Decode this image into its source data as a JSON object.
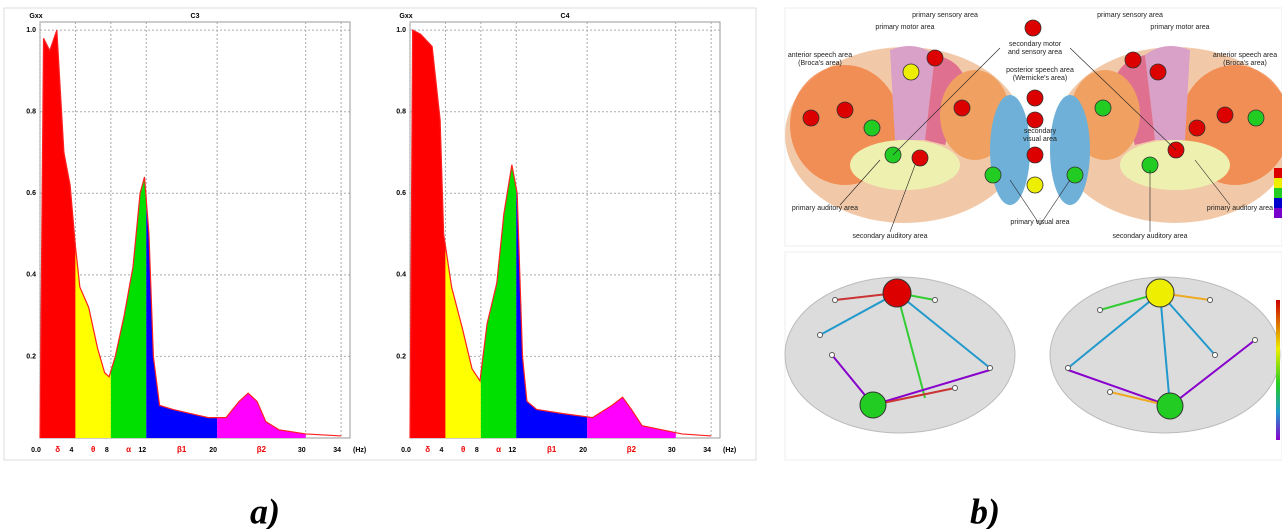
{
  "chart_data": [
    {
      "type": "area",
      "title": "C3",
      "y_label": "Gxx",
      "x_unit": "(Hz)",
      "x": [
        0,
        0.4,
        1.1,
        1.9,
        2.7,
        3.4,
        4,
        4.5,
        5.5,
        6.5,
        7.3,
        7.8,
        8.5,
        9.5,
        10.5,
        11.3,
        11.8,
        12.3,
        12.8,
        13.5,
        15,
        17,
        19,
        21,
        22.5,
        23.5,
        24.5,
        25.5,
        27,
        30,
        34
      ],
      "values": [
        0,
        0.98,
        0.95,
        1.0,
        0.7,
        0.62,
        0.47,
        0.37,
        0.32,
        0.22,
        0.16,
        0.15,
        0.2,
        0.3,
        0.42,
        0.6,
        0.64,
        0.5,
        0.2,
        0.08,
        0.07,
        0.06,
        0.05,
        0.05,
        0.09,
        0.11,
        0.09,
        0.04,
        0.02,
        0.01,
        0.005
      ],
      "color": "#ff2020",
      "xlim": [
        0,
        35
      ],
      "ylim": [
        0,
        1.02
      ],
      "xticks": [
        {
          "value": 0,
          "label": "0.0"
        },
        4,
        8,
        12,
        20,
        30,
        34
      ],
      "yticks": [
        0.2,
        0.4,
        0.6,
        0.8,
        {
          "value": 1,
          "label": "1.0"
        }
      ],
      "grid": true,
      "bands": {
        "edges": [
          0,
          4,
          8,
          12,
          20,
          30
        ],
        "names": [
          "δ",
          "θ",
          "α",
          "β1",
          "β2"
        ],
        "colors": [
          "#ff0000",
          "#ffff00",
          "#00e000",
          "#0000ff",
          "#ff00ff"
        ]
      }
    },
    {
      "type": "area",
      "title": "C4",
      "y_label": "Gxx",
      "x_unit": "(Hz)",
      "x": [
        0,
        0.3,
        1.2,
        2.5,
        3.4,
        3.8,
        4.7,
        5.9,
        7,
        7.9,
        8.7,
        9.8,
        10.6,
        11.5,
        12.1,
        12.7,
        13.2,
        14.3,
        17.2,
        20.6,
        22.8,
        24,
        25,
        26.2,
        30.7,
        34
      ],
      "values": [
        0,
        1.0,
        0.99,
        0.96,
        0.78,
        0.5,
        0.37,
        0.27,
        0.17,
        0.14,
        0.28,
        0.38,
        0.55,
        0.67,
        0.6,
        0.2,
        0.09,
        0.07,
        0.06,
        0.05,
        0.08,
        0.1,
        0.07,
        0.03,
        0.01,
        0.005
      ],
      "color": "#ff2020",
      "xlim": [
        0,
        35
      ],
      "ylim": [
        0,
        1.02
      ],
      "xticks": [
        {
          "value": 0,
          "label": "0.0"
        },
        4,
        8,
        12,
        20,
        30,
        34
      ],
      "yticks": [
        0.2,
        0.4,
        0.6,
        0.8,
        {
          "value": 1,
          "label": "1.0"
        }
      ],
      "grid": true,
      "bands": {
        "edges": [
          0,
          4,
          8,
          12,
          20,
          30
        ],
        "names": [
          "δ",
          "θ",
          "α",
          "β1",
          "β2"
        ],
        "colors": [
          "#ff0000",
          "#ffff00",
          "#00e000",
          "#0000ff",
          "#ff00ff"
        ]
      }
    }
  ],
  "figure": {
    "captions": [
      "a)",
      "b)"
    ],
    "brain_labels": [
      "primary motor area",
      "primary sensory area",
      "primary sensory area",
      "primary motor area",
      "anterior speech area",
      "(Broca's area)",
      "anterior speech area",
      "(Broca's area)",
      "secondary motor",
      "and sensory area",
      "posterior speech area",
      "(Wernicke's area)",
      "secondary",
      "visual area",
      "primary visual area",
      "primary auditory area",
      "primary auditory area",
      "secondary auditory area",
      "secondary auditory area"
    ]
  }
}
